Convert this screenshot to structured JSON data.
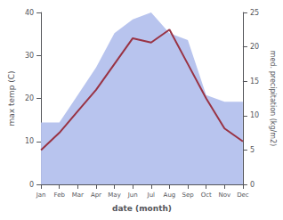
{
  "chart_data": {
    "type": "line",
    "categories": [
      "Jan",
      "Feb",
      "Mar",
      "Apr",
      "May",
      "Jun",
      "Jul",
      "Aug",
      "Sep",
      "Oct",
      "Nov",
      "Dec"
    ],
    "xlabel": "date (month)",
    "ylabel": "max temp (C)",
    "y2label": "med. precipitation (kg/m2)",
    "ylim": [
      0,
      40
    ],
    "yticks": [
      0,
      10,
      20,
      30,
      40
    ],
    "y2lim": [
      0,
      25
    ],
    "y2ticks": [
      0,
      5,
      10,
      15,
      20,
      25
    ],
    "grid": false,
    "series": [
      {
        "type": "area",
        "axis": "y2",
        "color": "#b8c4ee",
        "values": [
          9,
          9,
          13,
          17,
          22,
          24,
          25,
          22,
          21,
          13,
          12,
          12
        ]
      },
      {
        "type": "line",
        "color": "#993344",
        "values": [
          8,
          12,
          17,
          22,
          28,
          34,
          33,
          36,
          28,
          20,
          13,
          10
        ]
      }
    ]
  }
}
